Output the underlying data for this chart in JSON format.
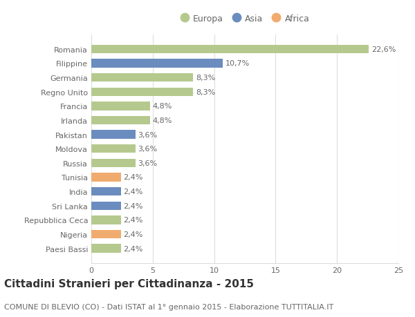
{
  "countries": [
    "Romania",
    "Filippine",
    "Germania",
    "Regno Unito",
    "Francia",
    "Irlanda",
    "Pakistan",
    "Moldova",
    "Russia",
    "Tunisia",
    "India",
    "Sri Lanka",
    "Repubblica Ceca",
    "Nigeria",
    "Paesi Bassi"
  ],
  "values": [
    22.6,
    10.7,
    8.3,
    8.3,
    4.8,
    4.8,
    3.6,
    3.6,
    3.6,
    2.4,
    2.4,
    2.4,
    2.4,
    2.4,
    2.4
  ],
  "labels": [
    "22,6%",
    "10,7%",
    "8,3%",
    "8,3%",
    "4,8%",
    "4,8%",
    "3,6%",
    "3,6%",
    "3,6%",
    "2,4%",
    "2,4%",
    "2,4%",
    "2,4%",
    "2,4%",
    "2,4%"
  ],
  "continents": [
    "Europa",
    "Asia",
    "Europa",
    "Europa",
    "Europa",
    "Europa",
    "Asia",
    "Europa",
    "Europa",
    "Africa",
    "Asia",
    "Asia",
    "Europa",
    "Africa",
    "Europa"
  ],
  "colors": {
    "Europa": "#b5c98e",
    "Asia": "#6b8cbe",
    "Africa": "#f0ab6e"
  },
  "xlim": [
    0,
    25
  ],
  "xticks": [
    0,
    5,
    10,
    15,
    20,
    25
  ],
  "title": "Cittadini Stranieri per Cittadinanza - 2015",
  "subtitle": "COMUNE DI BLEVIO (CO) - Dati ISTAT al 1° gennaio 2015 - Elaborazione TUTTITALIA.IT",
  "background_color": "#ffffff",
  "bar_height": 0.6,
  "grid_color": "#dddddd",
  "label_fontsize": 8,
  "tick_fontsize": 8,
  "title_fontsize": 11,
  "subtitle_fontsize": 8
}
